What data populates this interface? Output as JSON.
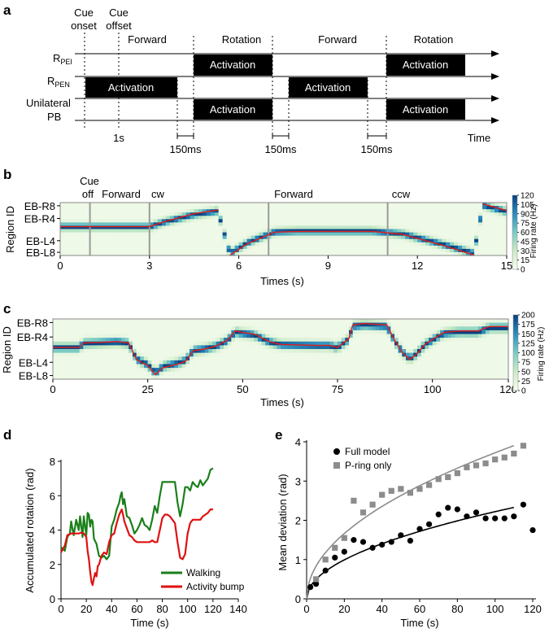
{
  "panel_labels": {
    "a": "a",
    "b": "b",
    "c": "c",
    "d": "d",
    "e": "e"
  },
  "chart_data": [
    {
      "panel": "a",
      "type": "timing-diagram",
      "row_labels": [
        {
          "main": "R",
          "sub": "PEI"
        },
        {
          "main": "R",
          "sub": "PEN"
        },
        {
          "main": "Unilateral",
          "second": "PB"
        }
      ],
      "phase_labels": [
        "Forward",
        "Rotation",
        "Forward",
        "Rotation"
      ],
      "marker_labels": [
        "Cue",
        "onset",
        "Cue",
        "offset"
      ],
      "time_label": "Time",
      "scale_label": "1s",
      "gap_label": "150ms",
      "bar_label": "Activation",
      "rows": [
        {
          "name": "PEI",
          "bars": [
            [
              2,
              3
            ],
            [
              4,
              5
            ]
          ]
        },
        {
          "name": "PEN",
          "bars": [
            [
              0,
              1
            ],
            [
              3,
              4
            ]
          ]
        },
        {
          "name": "Unilateral PB",
          "bars": [
            [
              2,
              3
            ],
            [
              4,
              5
            ]
          ]
        }
      ]
    },
    {
      "panel": "b",
      "type": "heatmap",
      "xlabel": "Times (s)",
      "ylabel": "Region ID",
      "xlim": [
        0,
        15
      ],
      "xticks": [
        0,
        3,
        6,
        9,
        12,
        15
      ],
      "yticklabels": [
        "EB-R8",
        "EB-R4",
        "EB-L4",
        "EB-L8"
      ],
      "annotations": [
        {
          "t": 1,
          "lines": [
            "Cue",
            "off"
          ]
        },
        {
          "t": 2,
          "lines": [
            "Forward"
          ]
        },
        {
          "t": 3,
          "lines": [
            "cw"
          ]
        },
        {
          "t": 7,
          "lines": [
            "Forward"
          ]
        },
        {
          "t": 11,
          "lines": [
            "ccw"
          ]
        }
      ],
      "vlines": [
        1,
        3,
        7,
        11
      ],
      "colorbar": {
        "label": "Firing rate (Hz)",
        "ticks": [
          0,
          15,
          30,
          45,
          60,
          75,
          90,
          105,
          120
        ]
      },
      "trace": [
        [
          0,
          0.09
        ],
        [
          1,
          0.09
        ],
        [
          3,
          0.09
        ],
        [
          3.5,
          0.28
        ],
        [
          4.5,
          0.58
        ],
        [
          5.3,
          0.72
        ],
        [
          5.7,
          -0.99
        ],
        [
          6.3,
          -0.55
        ],
        [
          7.2,
          -0.12
        ],
        [
          8,
          -0.09
        ],
        [
          10.5,
          -0.09
        ],
        [
          11.5,
          -0.2
        ],
        [
          12.8,
          -0.6
        ],
        [
          13.9,
          -0.98
        ],
        [
          14.2,
          0.95
        ],
        [
          15,
          0.7
        ]
      ]
    },
    {
      "panel": "c",
      "type": "heatmap",
      "xlabel": "Times (s)",
      "ylabel": "Region ID",
      "xlim": [
        0,
        120
      ],
      "xticks": [
        0,
        25,
        50,
        75,
        100,
        120
      ],
      "yticklabels": [
        "EB-R8",
        "EB-R4",
        "EB-L4",
        "EB-L8"
      ],
      "colorbar": {
        "label": "Firing rate (Hz)",
        "ticks": [
          0,
          25,
          50,
          75,
          100,
          125,
          150,
          175,
          200
        ]
      },
      "trace": [
        [
          0,
          0.05
        ],
        [
          7,
          0.05
        ],
        [
          8,
          0.2
        ],
        [
          12,
          0.22
        ],
        [
          17,
          0.25
        ],
        [
          20,
          0.2
        ],
        [
          22,
          -0.35
        ],
        [
          25,
          -0.55
        ],
        [
          27,
          -0.85
        ],
        [
          29,
          -0.62
        ],
        [
          33,
          -0.5
        ],
        [
          35,
          -0.4
        ],
        [
          37,
          -0.05
        ],
        [
          40,
          0.0
        ],
        [
          43,
          0.1
        ],
        [
          46,
          0.3
        ],
        [
          48,
          0.6
        ],
        [
          50,
          0.55
        ],
        [
          53,
          0.5
        ],
        [
          57,
          0.25
        ],
        [
          60,
          0.15
        ],
        [
          70,
          0.12
        ],
        [
          73,
          0.12
        ],
        [
          75,
          0.05
        ],
        [
          78,
          0.35
        ],
        [
          79,
          0.8
        ],
        [
          82,
          0.85
        ],
        [
          88,
          0.8
        ],
        [
          90,
          0.3
        ],
        [
          92,
          -0.1
        ],
        [
          94,
          -0.35
        ],
        [
          96,
          -0.15
        ],
        [
          98,
          0.15
        ],
        [
          101,
          0.4
        ],
        [
          103,
          0.55
        ],
        [
          107,
          0.6
        ],
        [
          112,
          0.6
        ],
        [
          115,
          0.75
        ],
        [
          120,
          0.75
        ]
      ]
    },
    {
      "panel": "d",
      "type": "line",
      "xlabel": "Time (s)",
      "ylabel": "Accumulated rotation (rad)",
      "xlim": [
        0,
        140
      ],
      "ylim": [
        0,
        8
      ],
      "xticks": [
        0,
        20,
        40,
        60,
        80,
        100,
        120,
        140
      ],
      "yticks": [
        0,
        2,
        4,
        6,
        8
      ],
      "series": [
        {
          "name": "Walking",
          "color": "#1a7f1a",
          "x": [
            0,
            3,
            5,
            7,
            8,
            10,
            12,
            14,
            15,
            17,
            18,
            20,
            21,
            22,
            23,
            24,
            25,
            26,
            28,
            30,
            32,
            34,
            36,
            38,
            40,
            42,
            44,
            46,
            47,
            48,
            49,
            50,
            52,
            54,
            56,
            58,
            60,
            62,
            64,
            66,
            68,
            70,
            72,
            74,
            76,
            78,
            80,
            82,
            84,
            86,
            88,
            90,
            92,
            94,
            96,
            98,
            100,
            102,
            104,
            106,
            108,
            110,
            112,
            114,
            116,
            118,
            120
          ],
          "y": [
            3.0,
            2.8,
            3.6,
            3.8,
            4.5,
            3.7,
            4.6,
            4.0,
            4.8,
            3.6,
            4.8,
            3.7,
            5.0,
            4.9,
            4.2,
            4.6,
            4.5,
            3.5,
            3.2,
            2.5,
            2.4,
            2.5,
            2.3,
            2.5,
            4.2,
            4.6,
            5.2,
            5.6,
            6.0,
            6.2,
            5.5,
            5.8,
            4.8,
            4.7,
            4.3,
            3.8,
            4.0,
            4.3,
            4.7,
            4.3,
            4.2,
            4.0,
            4.6,
            5.4,
            5.0,
            6.0,
            6.8,
            6.8,
            6.8,
            6.8,
            6.8,
            6.8,
            5.6,
            4.8,
            5.5,
            6.5,
            6.5,
            6.3,
            6.8,
            6.6,
            6.5,
            6.9,
            6.6,
            6.8,
            7.0,
            7.5,
            7.6
          ]
        },
        {
          "name": "Activity bump",
          "color": "#e01010",
          "x": [
            0,
            3,
            5,
            8,
            10,
            14,
            16,
            18,
            20,
            21,
            22,
            23,
            24,
            25,
            26,
            27,
            28,
            29,
            30,
            32,
            34,
            36,
            38,
            40,
            42,
            44,
            46,
            48,
            49,
            50,
            52,
            54,
            56,
            58,
            60,
            62,
            64,
            66,
            68,
            70,
            72,
            74,
            76,
            78,
            80,
            82,
            84,
            86,
            88,
            90,
            92,
            94,
            96,
            98,
            100,
            102,
            104,
            106,
            108,
            110,
            112,
            114,
            116,
            118,
            120
          ],
          "y": [
            2.7,
            3.1,
            3.7,
            3.8,
            3.8,
            3.8,
            3.85,
            3.8,
            3.6,
            2.8,
            2.3,
            1.6,
            1.0,
            0.8,
            1.2,
            1.5,
            1.3,
            1.9,
            2.0,
            2.5,
            2.7,
            2.6,
            3.3,
            3.7,
            3.8,
            4.4,
            4.9,
            5.2,
            4.9,
            4.5,
            4.1,
            3.7,
            3.6,
            3.4,
            3.3,
            3.3,
            3.3,
            3.3,
            3.3,
            3.3,
            3.4,
            3.3,
            3.3,
            4.0,
            4.7,
            4.9,
            4.9,
            4.8,
            4.6,
            4.4,
            3.3,
            2.4,
            2.3,
            2.6,
            3.8,
            4.4,
            4.6,
            4.6,
            4.6,
            4.6,
            4.8,
            4.9,
            5.0,
            5.2,
            5.2
          ]
        }
      ],
      "legend": [
        "Walking",
        "Activity bump"
      ]
    },
    {
      "panel": "e",
      "type": "scatter",
      "xlabel": "Time (s)",
      "ylabel": "Mean deviation (rad)",
      "xlim": [
        0,
        120
      ],
      "ylim": [
        0,
        4
      ],
      "xticks": [
        0,
        20,
        40,
        60,
        80,
        100,
        120
      ],
      "yticks": [
        0,
        1,
        2,
        3,
        4
      ],
      "series": [
        {
          "name": "Full model",
          "color": "#000000",
          "marker": "circle",
          "x": [
            2,
            5,
            10,
            15,
            20,
            25,
            30,
            35,
            40,
            45,
            50,
            55,
            60,
            65,
            70,
            75,
            80,
            85,
            90,
            95,
            100,
            105,
            110,
            115,
            120
          ],
          "y": [
            0.3,
            0.38,
            0.72,
            1.05,
            1.2,
            1.5,
            1.45,
            1.3,
            1.38,
            1.45,
            1.62,
            1.48,
            1.78,
            1.9,
            2.15,
            2.32,
            2.28,
            2.1,
            2.2,
            2.05,
            2.05,
            2.05,
            2.1,
            2.4,
            1.75
          ]
        },
        {
          "name": "P-ring only",
          "color": "#8c8c8c",
          "marker": "square",
          "x": [
            5,
            10,
            15,
            20,
            25,
            30,
            35,
            40,
            45,
            50,
            55,
            60,
            65,
            70,
            75,
            80,
            85,
            90,
            95,
            100,
            105,
            110,
            115
          ],
          "y": [
            0.5,
            1.0,
            1.3,
            1.55,
            2.5,
            2.2,
            2.4,
            2.65,
            2.75,
            2.8,
            2.7,
            2.8,
            2.9,
            3.05,
            3.1,
            3.2,
            3.35,
            3.4,
            3.45,
            3.55,
            3.6,
            3.7,
            3.9
          ]
        }
      ],
      "fits": [
        {
          "name": "Full model fit",
          "color": "#000000",
          "a": 0.222,
          "b": 0.5,
          "xmax": 110
        },
        {
          "name": "P-ring only fit",
          "color": "#8c8c8c",
          "a": 0.372,
          "b": 0.5,
          "xmax": 110
        }
      ],
      "legend": [
        "Full model",
        "P-ring only"
      ]
    }
  ]
}
